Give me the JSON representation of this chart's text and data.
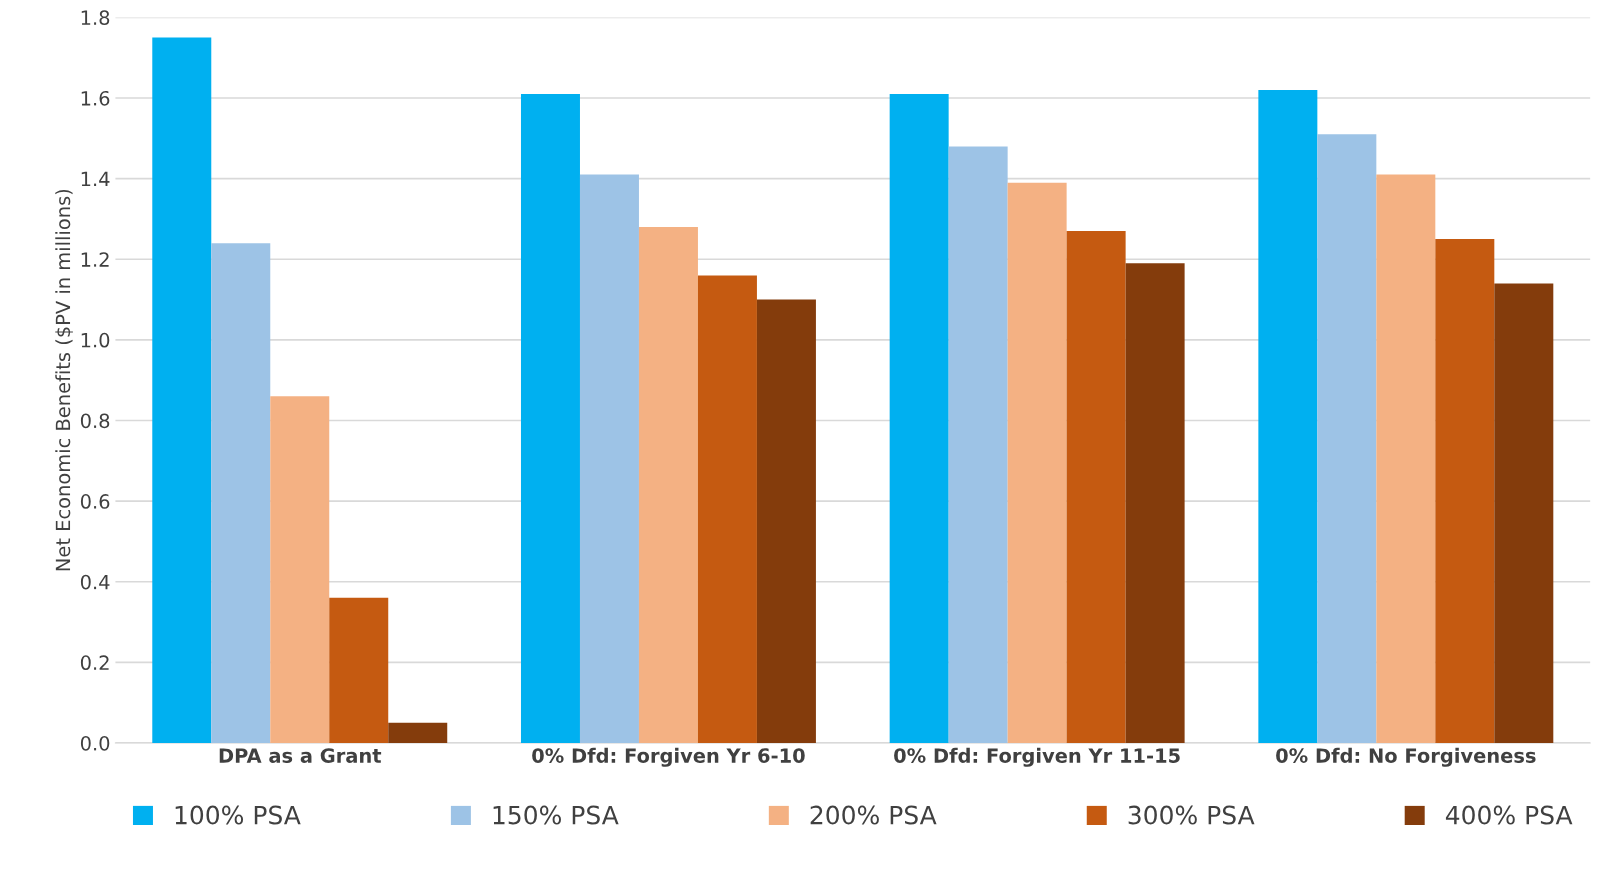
{
  "chart_data": {
    "type": "bar",
    "ylabel": "Net Economic Benefits ($PV in millions)",
    "categories": [
      "DPA as a Grant",
      "0% Dfd: Forgiven Yr 6-10",
      "0% Dfd: Forgiven Yr 11-15",
      "0% Dfd: No Forgiveness"
    ],
    "series": [
      {
        "name": "100% PSA",
        "color": "#00b0f0",
        "values": [
          1.75,
          1.61,
          1.61,
          1.62
        ]
      },
      {
        "name": "150% PSA",
        "color": "#9dc3e6",
        "values": [
          1.24,
          1.41,
          1.48,
          1.51
        ]
      },
      {
        "name": "200% PSA",
        "color": "#f4b183",
        "values": [
          0.86,
          1.28,
          1.39,
          1.41
        ]
      },
      {
        "name": "300% PSA",
        "color": "#c55a11",
        "values": [
          0.36,
          1.16,
          1.27,
          1.25
        ]
      },
      {
        "name": "400% PSA",
        "color": "#843c0c",
        "values": [
          0.05,
          1.1,
          1.19,
          1.14
        ]
      }
    ],
    "ylim": [
      0,
      1.8
    ],
    "yticks": [
      {
        "value": 0,
        "label": "0.0"
      },
      {
        "value": 0.2,
        "label": "0.2"
      },
      {
        "value": 0.4,
        "label": "0.4"
      },
      {
        "value": 0.6,
        "label": "0.6"
      },
      {
        "value": 0.8,
        "label": "0.8"
      },
      {
        "value": 1.0,
        "label": "1.0"
      },
      {
        "value": 1.2,
        "label": "1.2"
      },
      {
        "value": 1.4,
        "label": "1.4"
      },
      {
        "value": 1.6,
        "label": "1.6"
      },
      {
        "value": 1.8,
        "label": "1.8"
      }
    ],
    "grid": "y",
    "legend": "bottom"
  }
}
